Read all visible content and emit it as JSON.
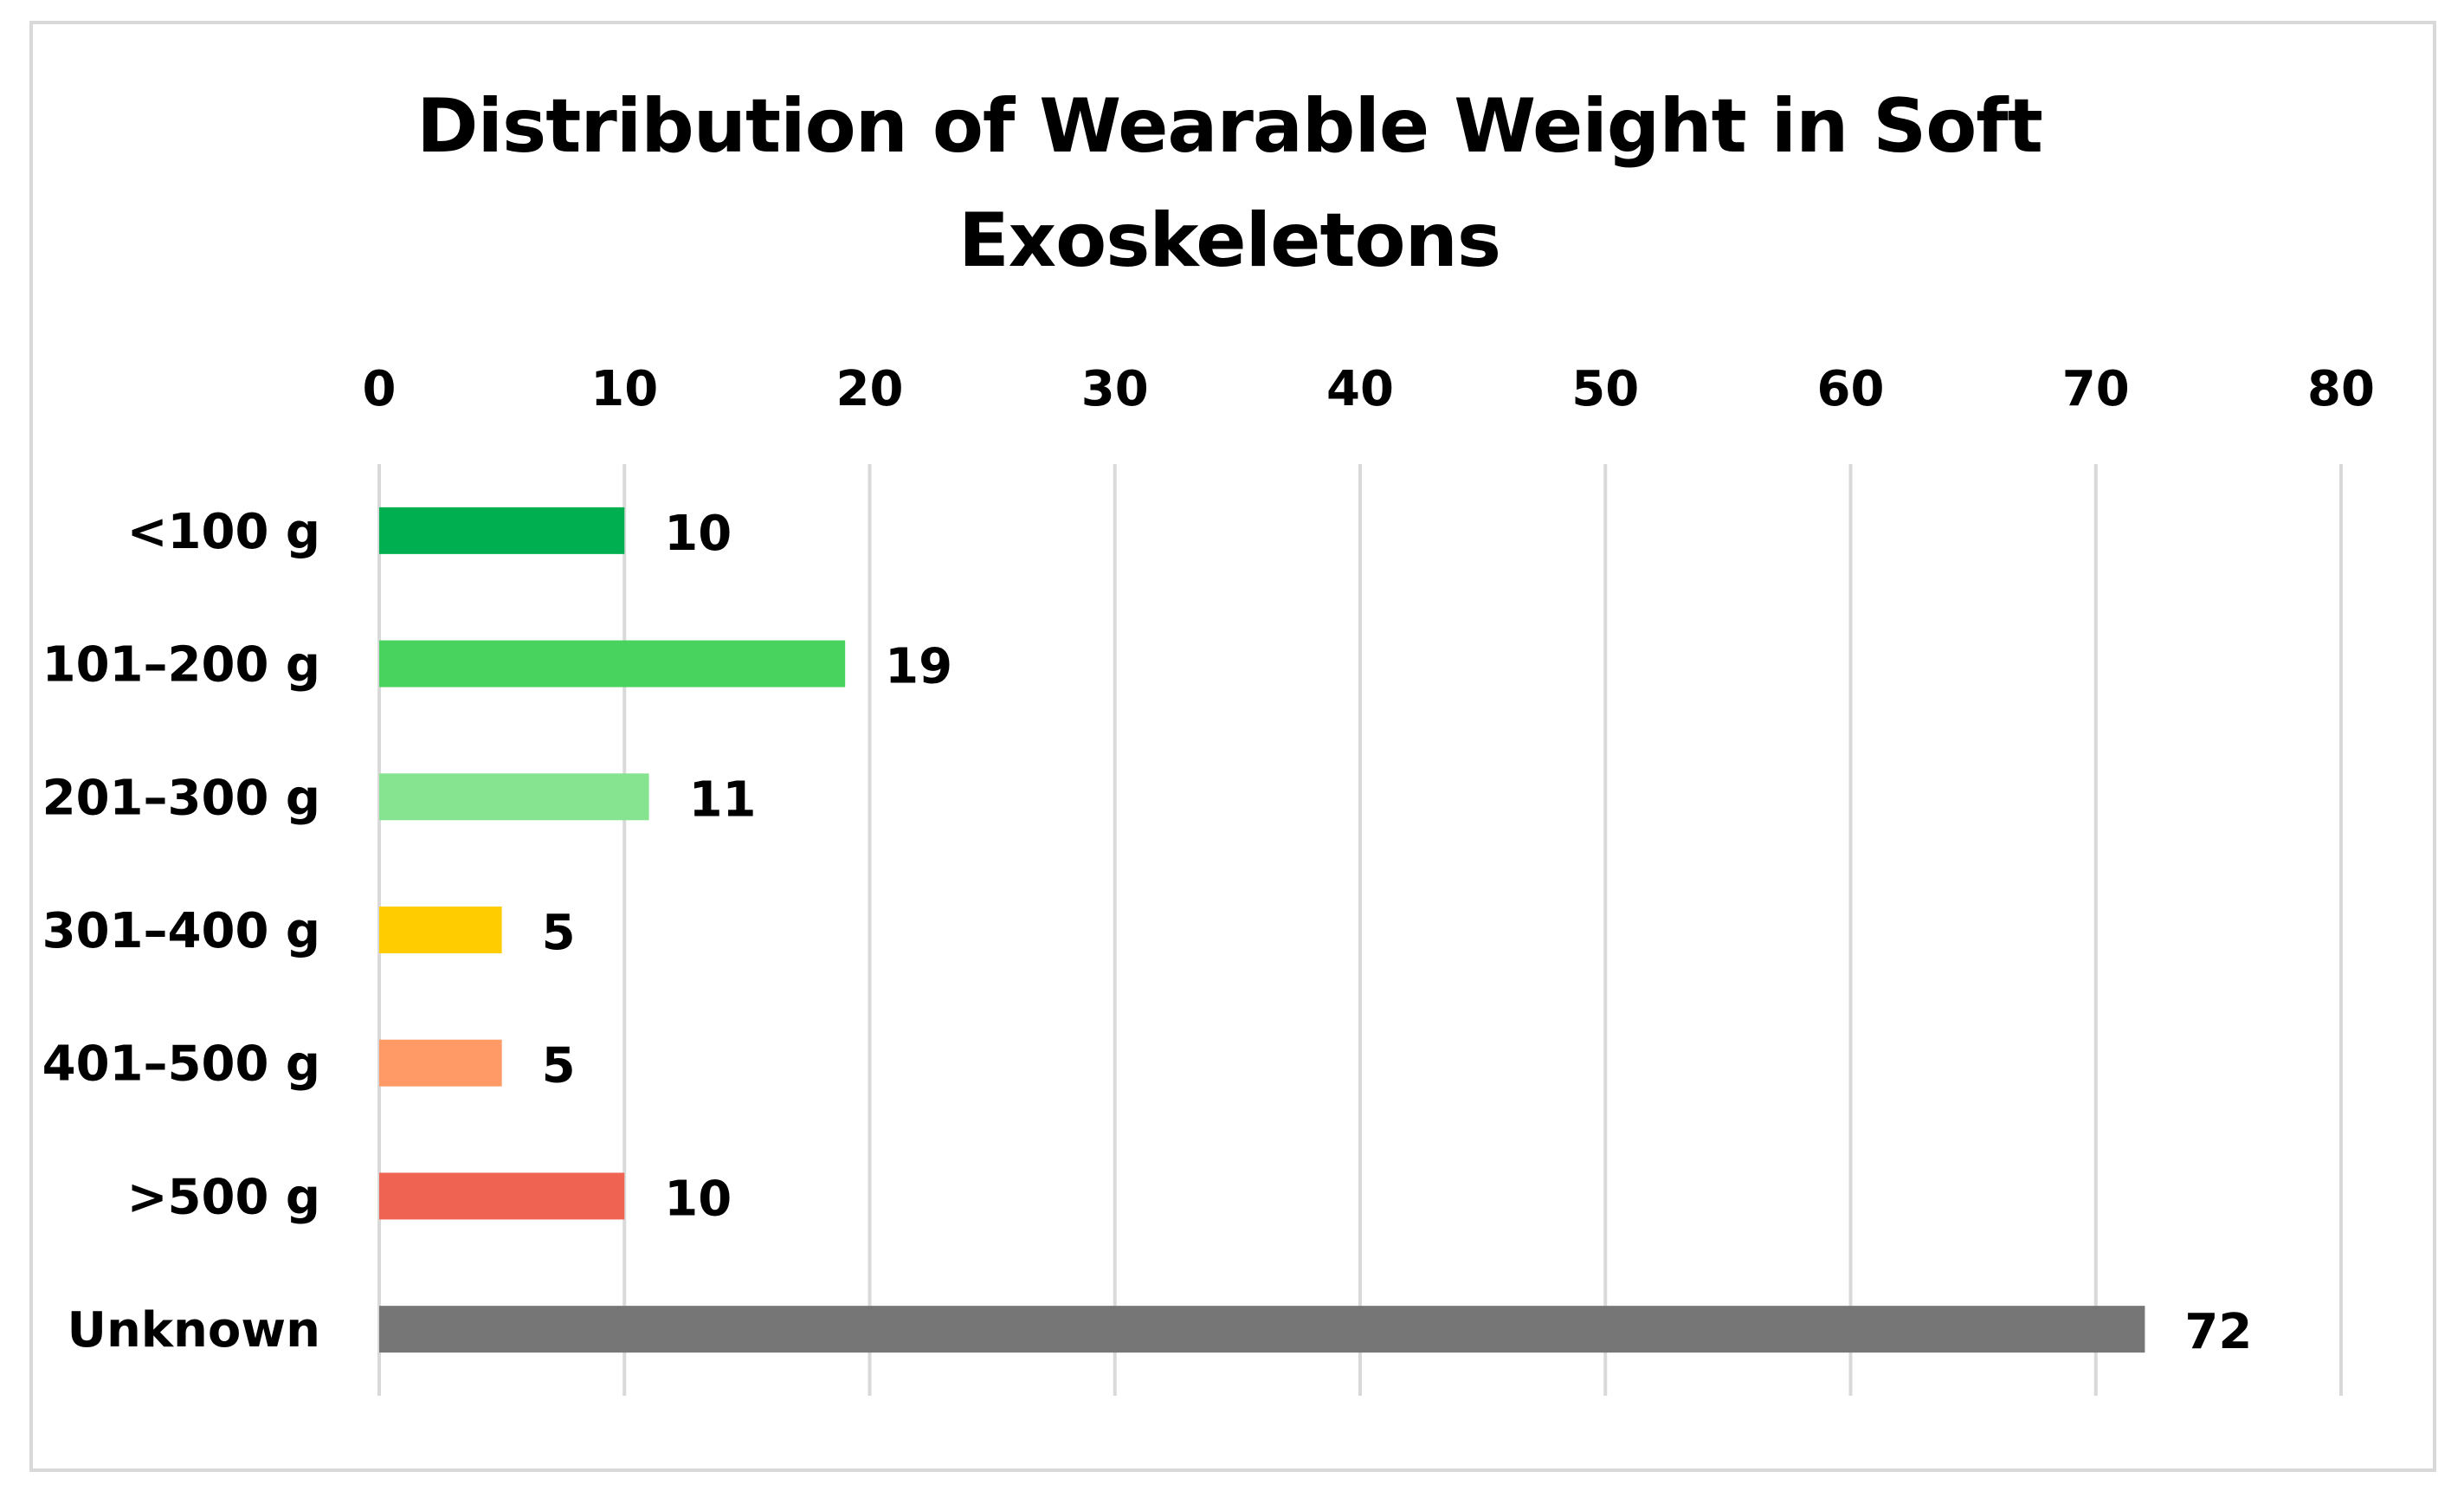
{
  "chart_data": {
    "type": "bar",
    "orientation": "horizontal",
    "title": "Distribution of Wearable Weight in Soft Exoskeletons",
    "xlabel": "",
    "ylabel": "",
    "categories": [
      "<100 g",
      "101–200 g",
      "201–300 g",
      "301–400 g",
      "401–500 g",
      ">500 g",
      "Unknown"
    ],
    "values": [
      10,
      19,
      11,
      5,
      5,
      10,
      72
    ],
    "colors": [
      "#00b050",
      "#47d35e",
      "#86e38f",
      "#ffcc00",
      "#ff9966",
      "#ee6352",
      "#767676"
    ],
    "xlim": [
      0,
      80
    ],
    "xticks": [
      0,
      10,
      20,
      30,
      40,
      50,
      60,
      70,
      80
    ],
    "x_axis_position": "top",
    "grid": "vertical",
    "gridline_color": "#d9d9d9",
    "data_labels": true,
    "legend": "none"
  }
}
